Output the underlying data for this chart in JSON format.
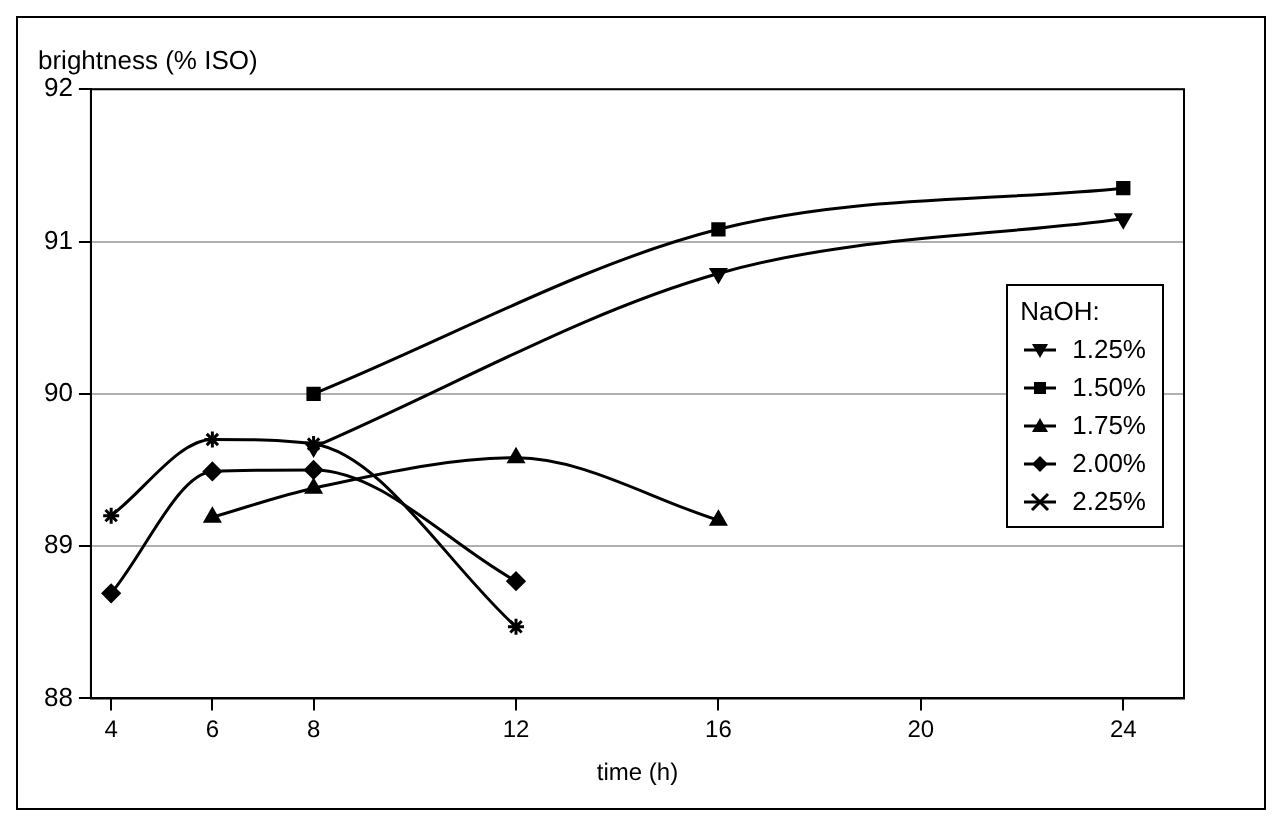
{
  "chart_data": {
    "type": "line",
    "ylabel": "brightness (% ISO)",
    "xlabel": "time (h)",
    "legend_title": "NaOH:",
    "legend": "right",
    "grid": "y",
    "line_style": "solid",
    "xlim": [
      3.6,
      25.2
    ],
    "xticks": [
      4,
      6,
      8,
      12,
      16,
      20,
      24
    ],
    "ylim": [
      88,
      92
    ],
    "yticks": [
      88,
      89,
      90,
      91,
      92
    ],
    "series": [
      {
        "name": "1.25%",
        "color": "#000000",
        "marker": "triangle-down",
        "x": [
          8,
          16,
          24
        ],
        "values": [
          89.65,
          90.79,
          91.15
        ]
      },
      {
        "name": "1.50%",
        "color": "#000000",
        "marker": "square",
        "x": [
          8,
          16,
          24
        ],
        "values": [
          90.0,
          91.08,
          91.35
        ]
      },
      {
        "name": "1.75%",
        "color": "#000000",
        "marker": "triangle",
        "x": [
          6,
          8,
          12,
          16
        ],
        "values": [
          89.19,
          89.38,
          89.58,
          89.17
        ]
      },
      {
        "name": "2.00%",
        "color": "#000000",
        "marker": "diamond",
        "x": [
          4,
          6,
          8,
          12
        ],
        "values": [
          88.69,
          89.49,
          89.5,
          88.77
        ]
      },
      {
        "name": "2.25%",
        "color": "#000000",
        "marker": "cross",
        "x": [
          4,
          6,
          8,
          12
        ],
        "values": [
          89.2,
          89.7,
          89.67,
          88.47
        ]
      }
    ]
  }
}
